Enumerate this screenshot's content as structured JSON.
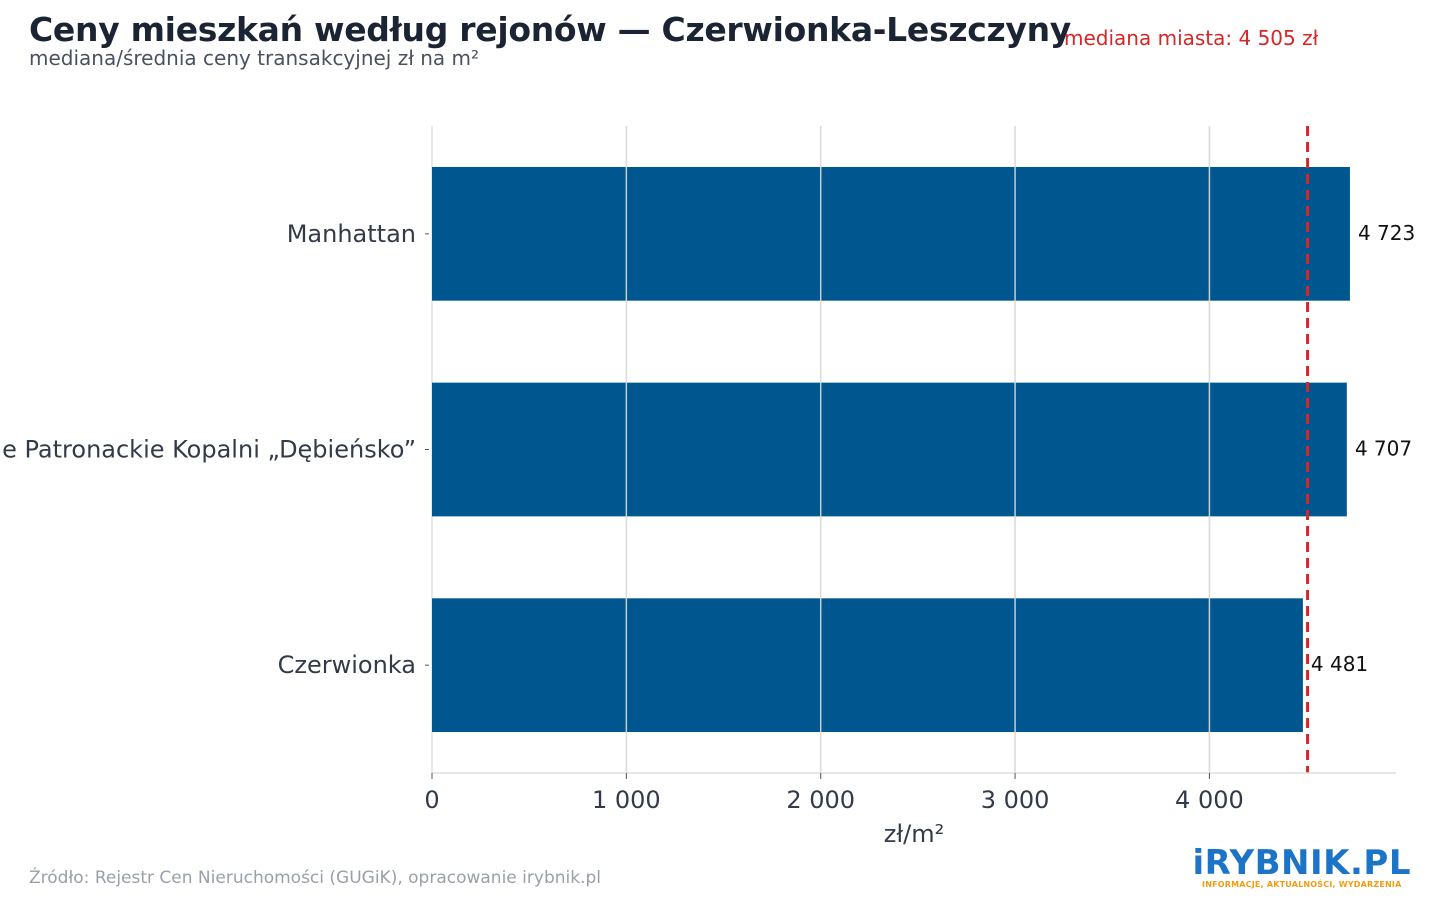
{
  "header": {
    "title": "Ceny mieszkań według rejonów — Czerwionka-Leszczyny",
    "subtitle": "mediana/średnia ceny transakcyjnej zł na m²",
    "median_label": "mediana miasta: 4 505 zł"
  },
  "chart_data": {
    "type": "bar",
    "orientation": "horizontal",
    "categories": [
      "Manhattan",
      "Osiedle Patronackie Kopalni „Dębieńsko”",
      "Czerwionka"
    ],
    "values": [
      4723,
      4707,
      4481
    ],
    "value_labels": [
      "4 723",
      "4 707",
      "4 481"
    ],
    "xlabel": "zł/m²",
    "xlim": [
      0,
      4960
    ],
    "xticks": [
      0,
      1000,
      2000,
      3000,
      4000
    ],
    "xtick_labels": [
      "0",
      "1 000",
      "2 000",
      "3 000",
      "4 000"
    ],
    "reference_line": {
      "value": 4505,
      "style": "dashed"
    },
    "grid": true,
    "colors": {
      "bar": "#00568e",
      "median": "#d62728",
      "grid": "#e3e3e3"
    }
  },
  "footer": {
    "source": "Źródło: Rejestr Cen Nieruchomości (GUGiK), opracowanie irybnik.pl",
    "logo": "iRYBNIK.PL",
    "logo_tagline": "INFORMACJE, AKTUALNOŚCI, WYDARZENIA"
  }
}
